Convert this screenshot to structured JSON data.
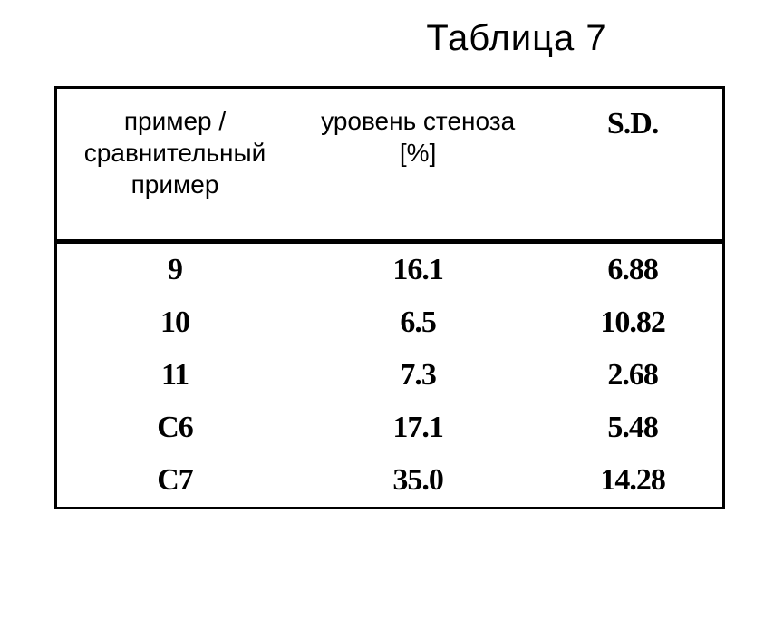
{
  "title": "Таблица 7",
  "table": {
    "columns": [
      {
        "lines": [
          "пример /",
          "сравнительный",
          "пример"
        ]
      },
      {
        "lines": [
          "уровень стеноза",
          "[%]"
        ]
      },
      {
        "lines": [
          "S.D."
        ]
      }
    ],
    "rows": [
      {
        "c0": "9",
        "c1": "16.1",
        "c2": "6.88"
      },
      {
        "c0": "10",
        "c1": "6.5",
        "c2": "10.82"
      },
      {
        "c0": "11",
        "c1": "7.3",
        "c2": "2.68"
      },
      {
        "c0": "C6",
        "c1": "17.1",
        "c2": "5.48"
      },
      {
        "c0": "C7",
        "c1": "35.0",
        "c2": "14.28"
      }
    ],
    "border_color": "#000000",
    "background": "#ffffff",
    "header_fontsize": 28,
    "cell_fontsize": 34,
    "title_fontsize": 40
  }
}
